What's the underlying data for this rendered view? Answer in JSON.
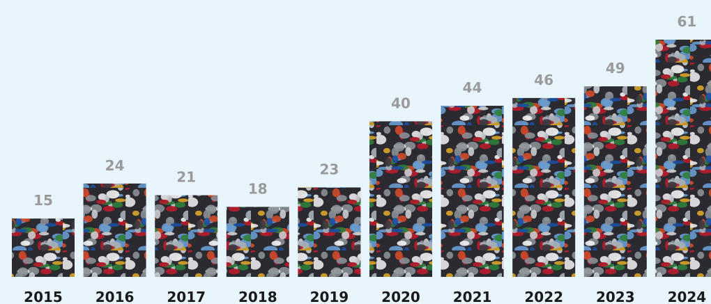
{
  "chart_data": {
    "type": "bar",
    "categories": [
      "2015",
      "2016",
      "2017",
      "2018",
      "2019",
      "2020",
      "2021",
      "2022",
      "2023",
      "2024"
    ],
    "values": [
      15,
      24,
      21,
      18,
      23,
      40,
      44,
      46,
      49,
      61
    ]
  }
}
